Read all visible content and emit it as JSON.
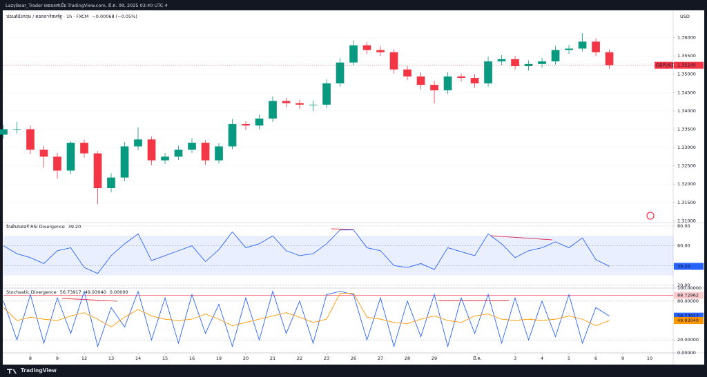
{
  "header": {
    "publisher": "LazyBear_Trader เผยแพร่เมื่อ TradingView.com, มี.ค. 08, 2025 03:40 UTC-4",
    "footer": "TradingView"
  },
  "chart_data": [
    {
      "type": "candlestick",
      "title": "ปอนด์อังกฤษ / ดอลลาร์สหรัฐ · 1h · FXCM",
      "change": "−0.00068 (−0.05%)",
      "currency": "USD",
      "symbol": "GBPUSD",
      "last_price": 1.35245,
      "up_color": "#089981",
      "down_color": "#f23645",
      "price_line_color": "#f23645",
      "x": [
        -1,
        -0.5,
        0,
        0.5,
        1,
        1.5,
        2,
        2.5,
        3,
        3.5,
        4,
        4.5,
        5,
        5.5,
        6,
        6.5,
        7,
        7.5,
        8,
        8.5,
        9,
        9.5,
        10,
        10.5,
        11,
        11.5,
        12,
        12.5,
        13,
        13.5,
        14,
        14.5,
        15,
        15.5,
        16,
        16.5,
        17,
        17.5,
        18,
        18.5,
        19,
        19.5,
        20,
        20.5,
        21,
        21.5
      ],
      "open": [
        1.3335,
        1.335,
        1.335,
        1.3294,
        1.3275,
        1.3237,
        1.3313,
        1.3284,
        1.3189,
        1.3218,
        1.3303,
        1.3322,
        1.3265,
        1.3275,
        1.3294,
        1.3313,
        1.3265,
        1.3303,
        1.3364,
        1.336,
        1.3379,
        1.3427,
        1.3421,
        1.3417,
        1.3417,
        1.3475,
        1.3532,
        1.3579,
        1.3566,
        1.356,
        1.3513,
        1.3494,
        1.3471,
        1.3456,
        1.3494,
        1.349,
        1.3475,
        1.3535,
        1.3541,
        1.3522,
        1.3528,
        1.3535,
        1.3566,
        1.357,
        1.3589,
        1.356
      ],
      "high": [
        1.3362,
        1.337,
        1.336,
        1.3305,
        1.3285,
        1.3318,
        1.3322,
        1.329,
        1.323,
        1.3315,
        1.3355,
        1.333,
        1.3285,
        1.3305,
        1.3325,
        1.332,
        1.3312,
        1.3378,
        1.3372,
        1.339,
        1.344,
        1.3436,
        1.343,
        1.3428,
        1.3486,
        1.3545,
        1.3592,
        1.3588,
        1.3576,
        1.3568,
        1.3522,
        1.3505,
        1.3482,
        1.3505,
        1.3502,
        1.35,
        1.3548,
        1.3552,
        1.355,
        1.3538,
        1.3545,
        1.3577,
        1.358,
        1.3612,
        1.3598,
        1.3568
      ],
      "low": [
        1.3325,
        1.3338,
        1.3282,
        1.3245,
        1.3215,
        1.3228,
        1.3272,
        1.3145,
        1.3178,
        1.3208,
        1.3292,
        1.3252,
        1.3255,
        1.3266,
        1.3285,
        1.3252,
        1.3256,
        1.3295,
        1.3348,
        1.335,
        1.337,
        1.341,
        1.3405,
        1.34,
        1.3408,
        1.3466,
        1.3524,
        1.3555,
        1.355,
        1.3502,
        1.3484,
        1.346,
        1.342,
        1.3446,
        1.348,
        1.3463,
        1.3466,
        1.3525,
        1.3512,
        1.351,
        1.3518,
        1.3526,
        1.3556,
        1.3562,
        1.355,
        1.3515
      ],
      "close": [
        1.335,
        1.335,
        1.3294,
        1.3275,
        1.3237,
        1.3313,
        1.3284,
        1.3189,
        1.3218,
        1.3303,
        1.3322,
        1.3265,
        1.3275,
        1.3294,
        1.3313,
        1.3265,
        1.3303,
        1.3364,
        1.336,
        1.3379,
        1.3427,
        1.3421,
        1.3417,
        1.3417,
        1.3475,
        1.3532,
        1.3579,
        1.3566,
        1.356,
        1.3513,
        1.3494,
        1.3471,
        1.3456,
        1.3494,
        1.349,
        1.3475,
        1.3535,
        1.3541,
        1.3522,
        1.3528,
        1.3535,
        1.3566,
        1.357,
        1.3589,
        1.356,
        1.3525
      ],
      "xlim": [
        -1,
        23.87
      ],
      "ylim": [
        1.3095,
        1.3665
      ],
      "grid": true,
      "yticks": [
        {
          "value": 1.36,
          "label": "1.36000"
        },
        {
          "value": 1.355,
          "label": "1.35500"
        },
        {
          "value": 1.35,
          "label": "1.35000"
        },
        {
          "value": 1.345,
          "label": "1.34500"
        },
        {
          "value": 1.34,
          "label": "1.34000"
        },
        {
          "value": 1.335,
          "label": "1.33500"
        },
        {
          "value": 1.33,
          "label": "1.33000"
        },
        {
          "value": 1.325,
          "label": "1.32500"
        },
        {
          "value": 1.32,
          "label": "1.32000"
        },
        {
          "value": 1.315,
          "label": "1.31500"
        },
        {
          "value": 1.31,
          "label": "1.31000"
        }
      ]
    },
    {
      "type": "line",
      "title": "อินดิเคเตอร์ RSI Divergence",
      "band": [
        30,
        70
      ],
      "band_color": "#2962ff",
      "x": [
        -1,
        -0.5,
        0,
        0.5,
        1,
        1.5,
        2,
        2.5,
        3,
        3.5,
        4,
        4.5,
        5,
        5.5,
        6,
        6.5,
        7,
        7.5,
        8,
        8.5,
        9,
        9.5,
        10,
        10.5,
        11,
        11.5,
        12,
        12.5,
        13,
        13.5,
        14,
        14.5,
        15,
        15.5,
        16,
        16.5,
        17,
        17.5,
        18,
        18.5,
        19,
        19.5,
        20,
        20.5,
        21,
        21.5
      ],
      "series": [
        {
          "name": "RSI",
          "color": "#2962ff",
          "last_label": "39.20",
          "values": [
            60,
            52,
            48,
            42,
            55,
            58,
            38,
            32,
            50,
            62,
            72,
            45,
            50,
            55,
            60,
            44,
            56,
            74,
            58,
            62,
            70,
            55,
            50,
            52,
            62,
            76,
            76,
            58,
            55,
            40,
            38,
            42,
            36,
            58,
            54,
            50,
            72,
            62,
            48,
            55,
            58,
            64,
            58,
            68,
            46,
            39.2
          ]
        }
      ],
      "xlim": [
        -1,
        23.87
      ],
      "ylim": [
        17.2,
        83.4
      ],
      "grid": false,
      "yticks": [
        {
          "value": 80,
          "label": "80.00"
        },
        {
          "value": 60,
          "label": "60.00"
        },
        {
          "value": 40,
          "label": "40.00"
        },
        {
          "value": 20,
          "label": "20.00"
        }
      ]
    },
    {
      "type": "line",
      "title": "Stochastic Divergence",
      "status_value": "0.00000",
      "level": 88.72962,
      "level_color": "#f23645",
      "x": [
        -1,
        -0.5,
        0,
        0.5,
        1,
        1.5,
        2,
        2.5,
        3,
        3.5,
        4,
        4.5,
        5,
        5.5,
        6,
        6.5,
        7,
        7.5,
        8,
        8.5,
        9,
        9.5,
        10,
        10.5,
        11,
        11.5,
        12,
        12.5,
        13,
        13.5,
        14,
        14.5,
        15,
        15.5,
        16,
        16.5,
        17,
        17.5,
        18,
        18.5,
        19,
        19.5,
        20,
        20.5,
        21,
        21.5
      ],
      "series": [
        {
          "name": "%K",
          "color": "#2962ff",
          "values": [
            80,
            20,
            90,
            15,
            85,
            30,
            95,
            10,
            70,
            40,
            95,
            20,
            85,
            15,
            90,
            30,
            75,
            10,
            85,
            20,
            95,
            30,
            80,
            15,
            90,
            95,
            90,
            20,
            85,
            10,
            80,
            25,
            90,
            10,
            85,
            30,
            90,
            15,
            85,
            20,
            80,
            25,
            90,
            15,
            70,
            56.73917
          ]
        },
        {
          "name": "%D",
          "color": "#ff9800",
          "last_label": "49.93040",
          "values": [
            70,
            50,
            55,
            52,
            50,
            57,
            62,
            52,
            40,
            55,
            67,
            57,
            52,
            50,
            52,
            60,
            52,
            42,
            47,
            52,
            57,
            62,
            55,
            47,
            52,
            92,
            92,
            55,
            52,
            47,
            45,
            52,
            57,
            50,
            47,
            57,
            60,
            52,
            50,
            52,
            50,
            52,
            57,
            52,
            42,
            49.9304
          ]
        }
      ],
      "xlim": [
        -1,
        23.87
      ],
      "ylim": [
        0,
        100
      ],
      "grid": false,
      "yticks": [
        {
          "value": 100,
          "label": "100.00000"
        },
        {
          "value": 80,
          "label": "80.00000"
        },
        {
          "value": 20,
          "label": "20.00000"
        },
        {
          "value": 0,
          "label": "0.00000"
        }
      ],
      "xticks": [
        {
          "value": 0,
          "label": "8"
        },
        {
          "value": 1,
          "label": "9"
        },
        {
          "value": 2,
          "label": "12"
        },
        {
          "value": 3,
          "label": "13"
        },
        {
          "value": 4,
          "label": "14"
        },
        {
          "value": 5,
          "label": "15"
        },
        {
          "value": 6,
          "label": "16"
        },
        {
          "value": 7,
          "label": "19"
        },
        {
          "value": 8,
          "label": "20"
        },
        {
          "value": 9,
          "label": "21"
        },
        {
          "value": 10,
          "label": "22"
        },
        {
          "value": 11,
          "label": "23"
        },
        {
          "value": 12,
          "label": "26"
        },
        {
          "value": 13,
          "label": "27"
        },
        {
          "value": 14,
          "label": "28"
        },
        {
          "value": 15,
          "label": "29"
        },
        {
          "value": 16.6,
          "label": "มี.ค."
        },
        {
          "value": 18,
          "label": "3"
        },
        {
          "value": 19,
          "label": "4"
        },
        {
          "value": 20,
          "label": "5"
        },
        {
          "value": 21,
          "label": "6"
        },
        {
          "value": 22,
          "label": "9"
        },
        {
          "value": 23,
          "label": "10"
        }
      ]
    }
  ]
}
